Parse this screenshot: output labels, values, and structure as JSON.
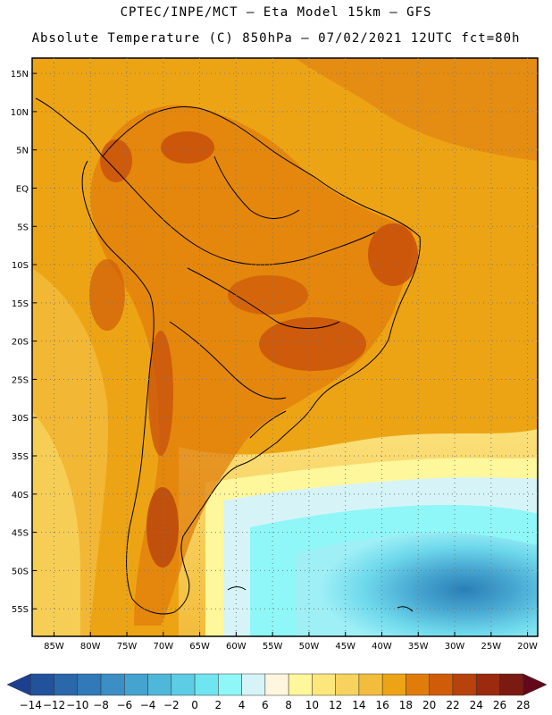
{
  "header": {
    "line1": "CPTEC/INPE/MCT –  Eta Model 15km – GFS",
    "line2": "Absolute Temperature (C) 850hPa – 07/02/2021 12UTC fct=80h"
  },
  "map": {
    "lat_labels": [
      "15N",
      "10N",
      "5N",
      "EQ",
      "5S",
      "10S",
      "15S",
      "20S",
      "25S",
      "30S",
      "35S",
      "40S",
      "45S",
      "50S",
      "55S"
    ],
    "lon_labels": [
      "85W",
      "80W",
      "75W",
      "70W",
      "65W",
      "60W",
      "55W",
      "50W",
      "45W",
      "40W",
      "35W",
      "30W",
      "25W",
      "20W"
    ],
    "lat_values": [
      15,
      10,
      5,
      0,
      -5,
      -10,
      -15,
      -20,
      -25,
      -30,
      -35,
      -40,
      -45,
      -50,
      -55
    ],
    "lon_values": [
      -85,
      -80,
      -75,
      -70,
      -65,
      -60,
      -55,
      -50,
      -45,
      -40,
      -35,
      -30,
      -25,
      -20
    ]
  },
  "colorbar": {
    "tick_labels": [
      "-14",
      "-12",
      "-10",
      "-8",
      "-6",
      "-4",
      "-2",
      "0",
      "2",
      "4",
      "6",
      "8",
      "10",
      "12",
      "14",
      "16",
      "18",
      "20",
      "22",
      "24",
      "26",
      "28"
    ],
    "colors": [
      "#1c3f8f",
      "#23529c",
      "#2a67ab",
      "#3179b8",
      "#3b8fc4",
      "#45a3cf",
      "#4fb7d9",
      "#5ccde4",
      "#6fe6ef",
      "#8ff7f7",
      "#d6f4f7",
      "#fff6df",
      "#fff79b",
      "#fbe77b",
      "#f7d35e",
      "#f2bc3c",
      "#eda414",
      "#e07d0a",
      "#d05c0a",
      "#b8420c",
      "#9b2a0e",
      "#7a1a10",
      "#63081a"
    ]
  }
}
